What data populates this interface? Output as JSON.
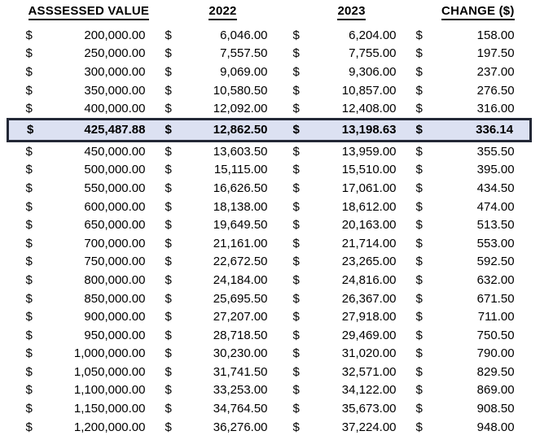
{
  "table": {
    "currency_symbol": "$",
    "headers": {
      "assessed": "ASSSESSED VALUE",
      "y2022": "2022",
      "y2023": "2023",
      "change": "CHANGE ($)"
    },
    "highlight_colors": {
      "background": "#dce1f2",
      "border": "#232836"
    },
    "rows": [
      {
        "assessed": "200,000.00",
        "y2022": "6,046.00",
        "y2023": "6,204.00",
        "change": "158.00",
        "highlighted": false
      },
      {
        "assessed": "250,000.00",
        "y2022": "7,557.50",
        "y2023": "7,755.00",
        "change": "197.50",
        "highlighted": false
      },
      {
        "assessed": "300,000.00",
        "y2022": "9,069.00",
        "y2023": "9,306.00",
        "change": "237.00",
        "highlighted": false
      },
      {
        "assessed": "350,000.00",
        "y2022": "10,580.50",
        "y2023": "10,857.00",
        "change": "276.50",
        "highlighted": false
      },
      {
        "assessed": "400,000.00",
        "y2022": "12,092.00",
        "y2023": "12,408.00",
        "change": "316.00",
        "highlighted": false
      },
      {
        "assessed": "425,487.88",
        "y2022": "12,862.50",
        "y2023": "13,198.63",
        "change": "336.14",
        "highlighted": true
      },
      {
        "assessed": "450,000.00",
        "y2022": "13,603.50",
        "y2023": "13,959.00",
        "change": "355.50",
        "highlighted": false
      },
      {
        "assessed": "500,000.00",
        "y2022": "15,115.00",
        "y2023": "15,510.00",
        "change": "395.00",
        "highlighted": false
      },
      {
        "assessed": "550,000.00",
        "y2022": "16,626.50",
        "y2023": "17,061.00",
        "change": "434.50",
        "highlighted": false
      },
      {
        "assessed": "600,000.00",
        "y2022": "18,138.00",
        "y2023": "18,612.00",
        "change": "474.00",
        "highlighted": false
      },
      {
        "assessed": "650,000.00",
        "y2022": "19,649.50",
        "y2023": "20,163.00",
        "change": "513.50",
        "highlighted": false
      },
      {
        "assessed": "700,000.00",
        "y2022": "21,161.00",
        "y2023": "21,714.00",
        "change": "553.00",
        "highlighted": false
      },
      {
        "assessed": "750,000.00",
        "y2022": "22,672.50",
        "y2023": "23,265.00",
        "change": "592.50",
        "highlighted": false
      },
      {
        "assessed": "800,000.00",
        "y2022": "24,184.00",
        "y2023": "24,816.00",
        "change": "632.00",
        "highlighted": false
      },
      {
        "assessed": "850,000.00",
        "y2022": "25,695.50",
        "y2023": "26,367.00",
        "change": "671.50",
        "highlighted": false
      },
      {
        "assessed": "900,000.00",
        "y2022": "27,207.00",
        "y2023": "27,918.00",
        "change": "711.00",
        "highlighted": false
      },
      {
        "assessed": "950,000.00",
        "y2022": "28,718.50",
        "y2023": "29,469.00",
        "change": "750.50",
        "highlighted": false
      },
      {
        "assessed": "1,000,000.00",
        "y2022": "30,230.00",
        "y2023": "31,020.00",
        "change": "790.00",
        "highlighted": false
      },
      {
        "assessed": "1,050,000.00",
        "y2022": "31,741.50",
        "y2023": "32,571.00",
        "change": "829.50",
        "highlighted": false
      },
      {
        "assessed": "1,100,000.00",
        "y2022": "33,253.00",
        "y2023": "34,122.00",
        "change": "869.00",
        "highlighted": false
      },
      {
        "assessed": "1,150,000.00",
        "y2022": "34,764.50",
        "y2023": "35,673.00",
        "change": "908.50",
        "highlighted": false
      },
      {
        "assessed": "1,200,000.00",
        "y2022": "36,276.00",
        "y2023": "37,224.00",
        "change": "948.00",
        "highlighted": false
      }
    ]
  }
}
